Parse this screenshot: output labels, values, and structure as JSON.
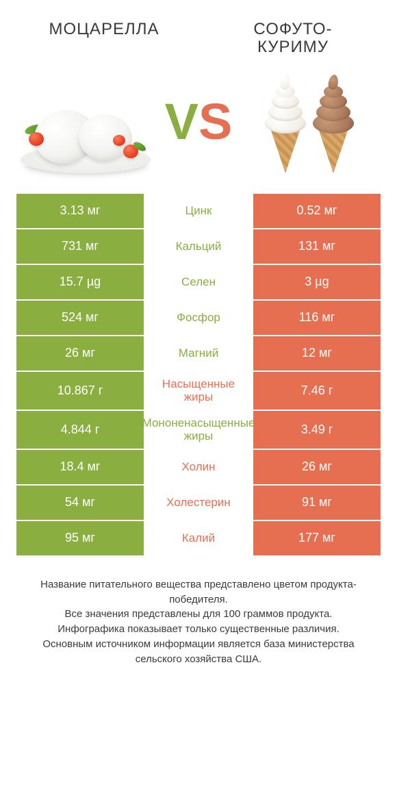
{
  "colors": {
    "green": "#8aae3f",
    "orange": "#e76f51",
    "text": "#3a3a3a",
    "background": "#ffffff"
  },
  "products": {
    "left": {
      "title": "МОЦАРЕЛЛА"
    },
    "right": {
      "title": "СОФУТО-\nКУРИМУ"
    }
  },
  "vs": {
    "v": "V",
    "s": "S"
  },
  "rows": [
    {
      "nutrient": "Цинк",
      "left": "3.13 мг",
      "right": "0.52 мг",
      "winner": "left"
    },
    {
      "nutrient": "Кальций",
      "left": "731 мг",
      "right": "131 мг",
      "winner": "left"
    },
    {
      "nutrient": "Селен",
      "left": "15.7 µg",
      "right": "3 µg",
      "winner": "left"
    },
    {
      "nutrient": "Фосфор",
      "left": "524 мг",
      "right": "116 мг",
      "winner": "left"
    },
    {
      "nutrient": "Магний",
      "left": "26 мг",
      "right": "12 мг",
      "winner": "left"
    },
    {
      "nutrient": "Насыщенные жиры",
      "left": "10.867 г",
      "right": "7.46 г",
      "winner": "right"
    },
    {
      "nutrient": "Мононенасыщенные жиры",
      "left": "4.844 г",
      "right": "3.49 г",
      "winner": "left"
    },
    {
      "nutrient": "Холин",
      "left": "18.4 мг",
      "right": "26 мг",
      "winner": "right"
    },
    {
      "nutrient": "Холестерин",
      "left": "54 мг",
      "right": "91 мг",
      "winner": "right"
    },
    {
      "nutrient": "Калий",
      "left": "95 мг",
      "right": "177 мг",
      "winner": "right"
    }
  ],
  "footer": {
    "l1": "Название питательного вещества представлено цветом продукта-победителя.",
    "l2": "Все значения представлены для 100 граммов продукта.",
    "l3": "Инфографика показывает только существенные различия.",
    "l4": "Основным источником информации является база министерства сельского хозяйства США."
  },
  "typography": {
    "title_fontsize": 24,
    "vs_fontsize": 74,
    "cell_fontsize": 18,
    "nutrient_fontsize": 17,
    "footer_fontsize": 15
  }
}
